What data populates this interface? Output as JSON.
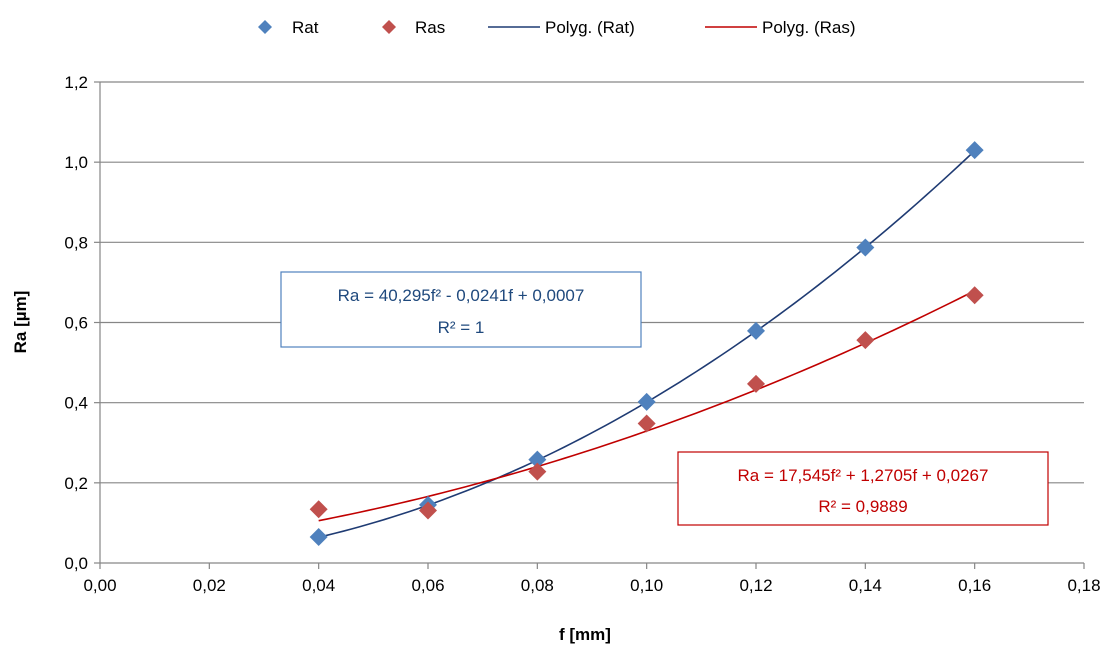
{
  "chart_data": {
    "type": "scatter",
    "title": "",
    "xlabel": "f [mm]",
    "ylabel": "Ra [µm]",
    "xlim": [
      0,
      0.18
    ],
    "ylim": [
      0,
      1.2
    ],
    "x_ticks": [
      "0,00",
      "0,02",
      "0,04",
      "0,06",
      "0,08",
      "0,10",
      "0,12",
      "0,14",
      "0,16",
      "0,18"
    ],
    "y_ticks": [
      "0,0",
      "0,2",
      "0,4",
      "0,6",
      "0,8",
      "1,0",
      "1,2"
    ],
    "grid": "horizontal",
    "legend_position": "top",
    "series": [
      {
        "name": "Rat",
        "color": "#4F81BD",
        "marker": "diamond",
        "x": [
          0.04,
          0.06,
          0.08,
          0.1,
          0.12,
          0.14,
          0.16
        ],
        "y": [
          0.065,
          0.145,
          0.258,
          0.402,
          0.579,
          0.787,
          1.03
        ]
      },
      {
        "name": "Ras",
        "color": "#C0504D",
        "marker": "diamond",
        "x": [
          0.04,
          0.06,
          0.08,
          0.1,
          0.12,
          0.14,
          0.16
        ],
        "y": [
          0.134,
          0.131,
          0.228,
          0.348,
          0.447,
          0.556,
          0.668
        ]
      }
    ],
    "trendlines": [
      {
        "name": "Polyg. (Rat)",
        "color": "#1F3B73",
        "coefficients": [
          40.295,
          -0.0241,
          0.0007
        ],
        "x_range": [
          0.04,
          0.16
        ],
        "equation": "Ra = 40,295f² - 0,0241f + 0,0007",
        "r2": "R² = 1",
        "box_color": "#4F81BD",
        "text_color": "#1F497D"
      },
      {
        "name": "Polyg. (Ras)",
        "color": "#C00000",
        "coefficients": [
          17.545,
          1.2705,
          0.0267
        ],
        "x_range": [
          0.04,
          0.16
        ],
        "equation": "Ra = 17,545f² + 1,2705f + 0,0267",
        "r2": "R² = 0,9889",
        "box_color": "#C00000",
        "text_color": "#C00000"
      }
    ]
  }
}
